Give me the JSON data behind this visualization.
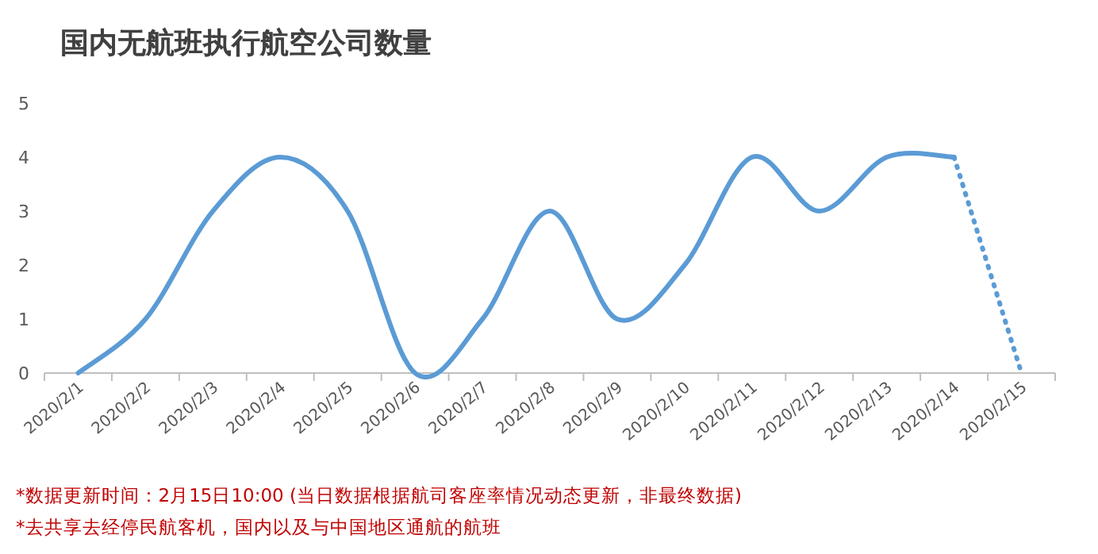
{
  "chart_data": {
    "type": "line",
    "title": "国内无航班执行航空公司数量",
    "categories": [
      "2020/2/1",
      "2020/2/2",
      "2020/2/3",
      "2020/2/4",
      "2020/2/5",
      "2020/2/6",
      "2020/2/7",
      "2020/2/8",
      "2020/2/9",
      "2020/2/10",
      "2020/2/11",
      "2020/2/12",
      "2020/2/13",
      "2020/2/14",
      "2020/2/15"
    ],
    "series": [
      {
        "color": "#5b9bd5",
        "line_style": "solid",
        "values": [
          0,
          1,
          3,
          4,
          3,
          0,
          1,
          3,
          1,
          2,
          4,
          3,
          4,
          4,
          null
        ]
      },
      {
        "color": "#5b9bd5",
        "line_style": "dotted",
        "values": [
          null,
          null,
          null,
          null,
          null,
          null,
          null,
          null,
          null,
          null,
          null,
          null,
          null,
          4,
          0
        ]
      }
    ],
    "ylim": [
      0,
      5
    ],
    "yticks": [
      0,
      1,
      2,
      3,
      4,
      5
    ],
    "grid": false,
    "marker": "none",
    "annotations": [
      "*数据更新时间：2月15日10:00 (当日数据根据航司客座率情况动态更新，非最终数据)",
      "*去共享去经停民航客机，国内以及与中国地区通航的航班"
    ]
  }
}
